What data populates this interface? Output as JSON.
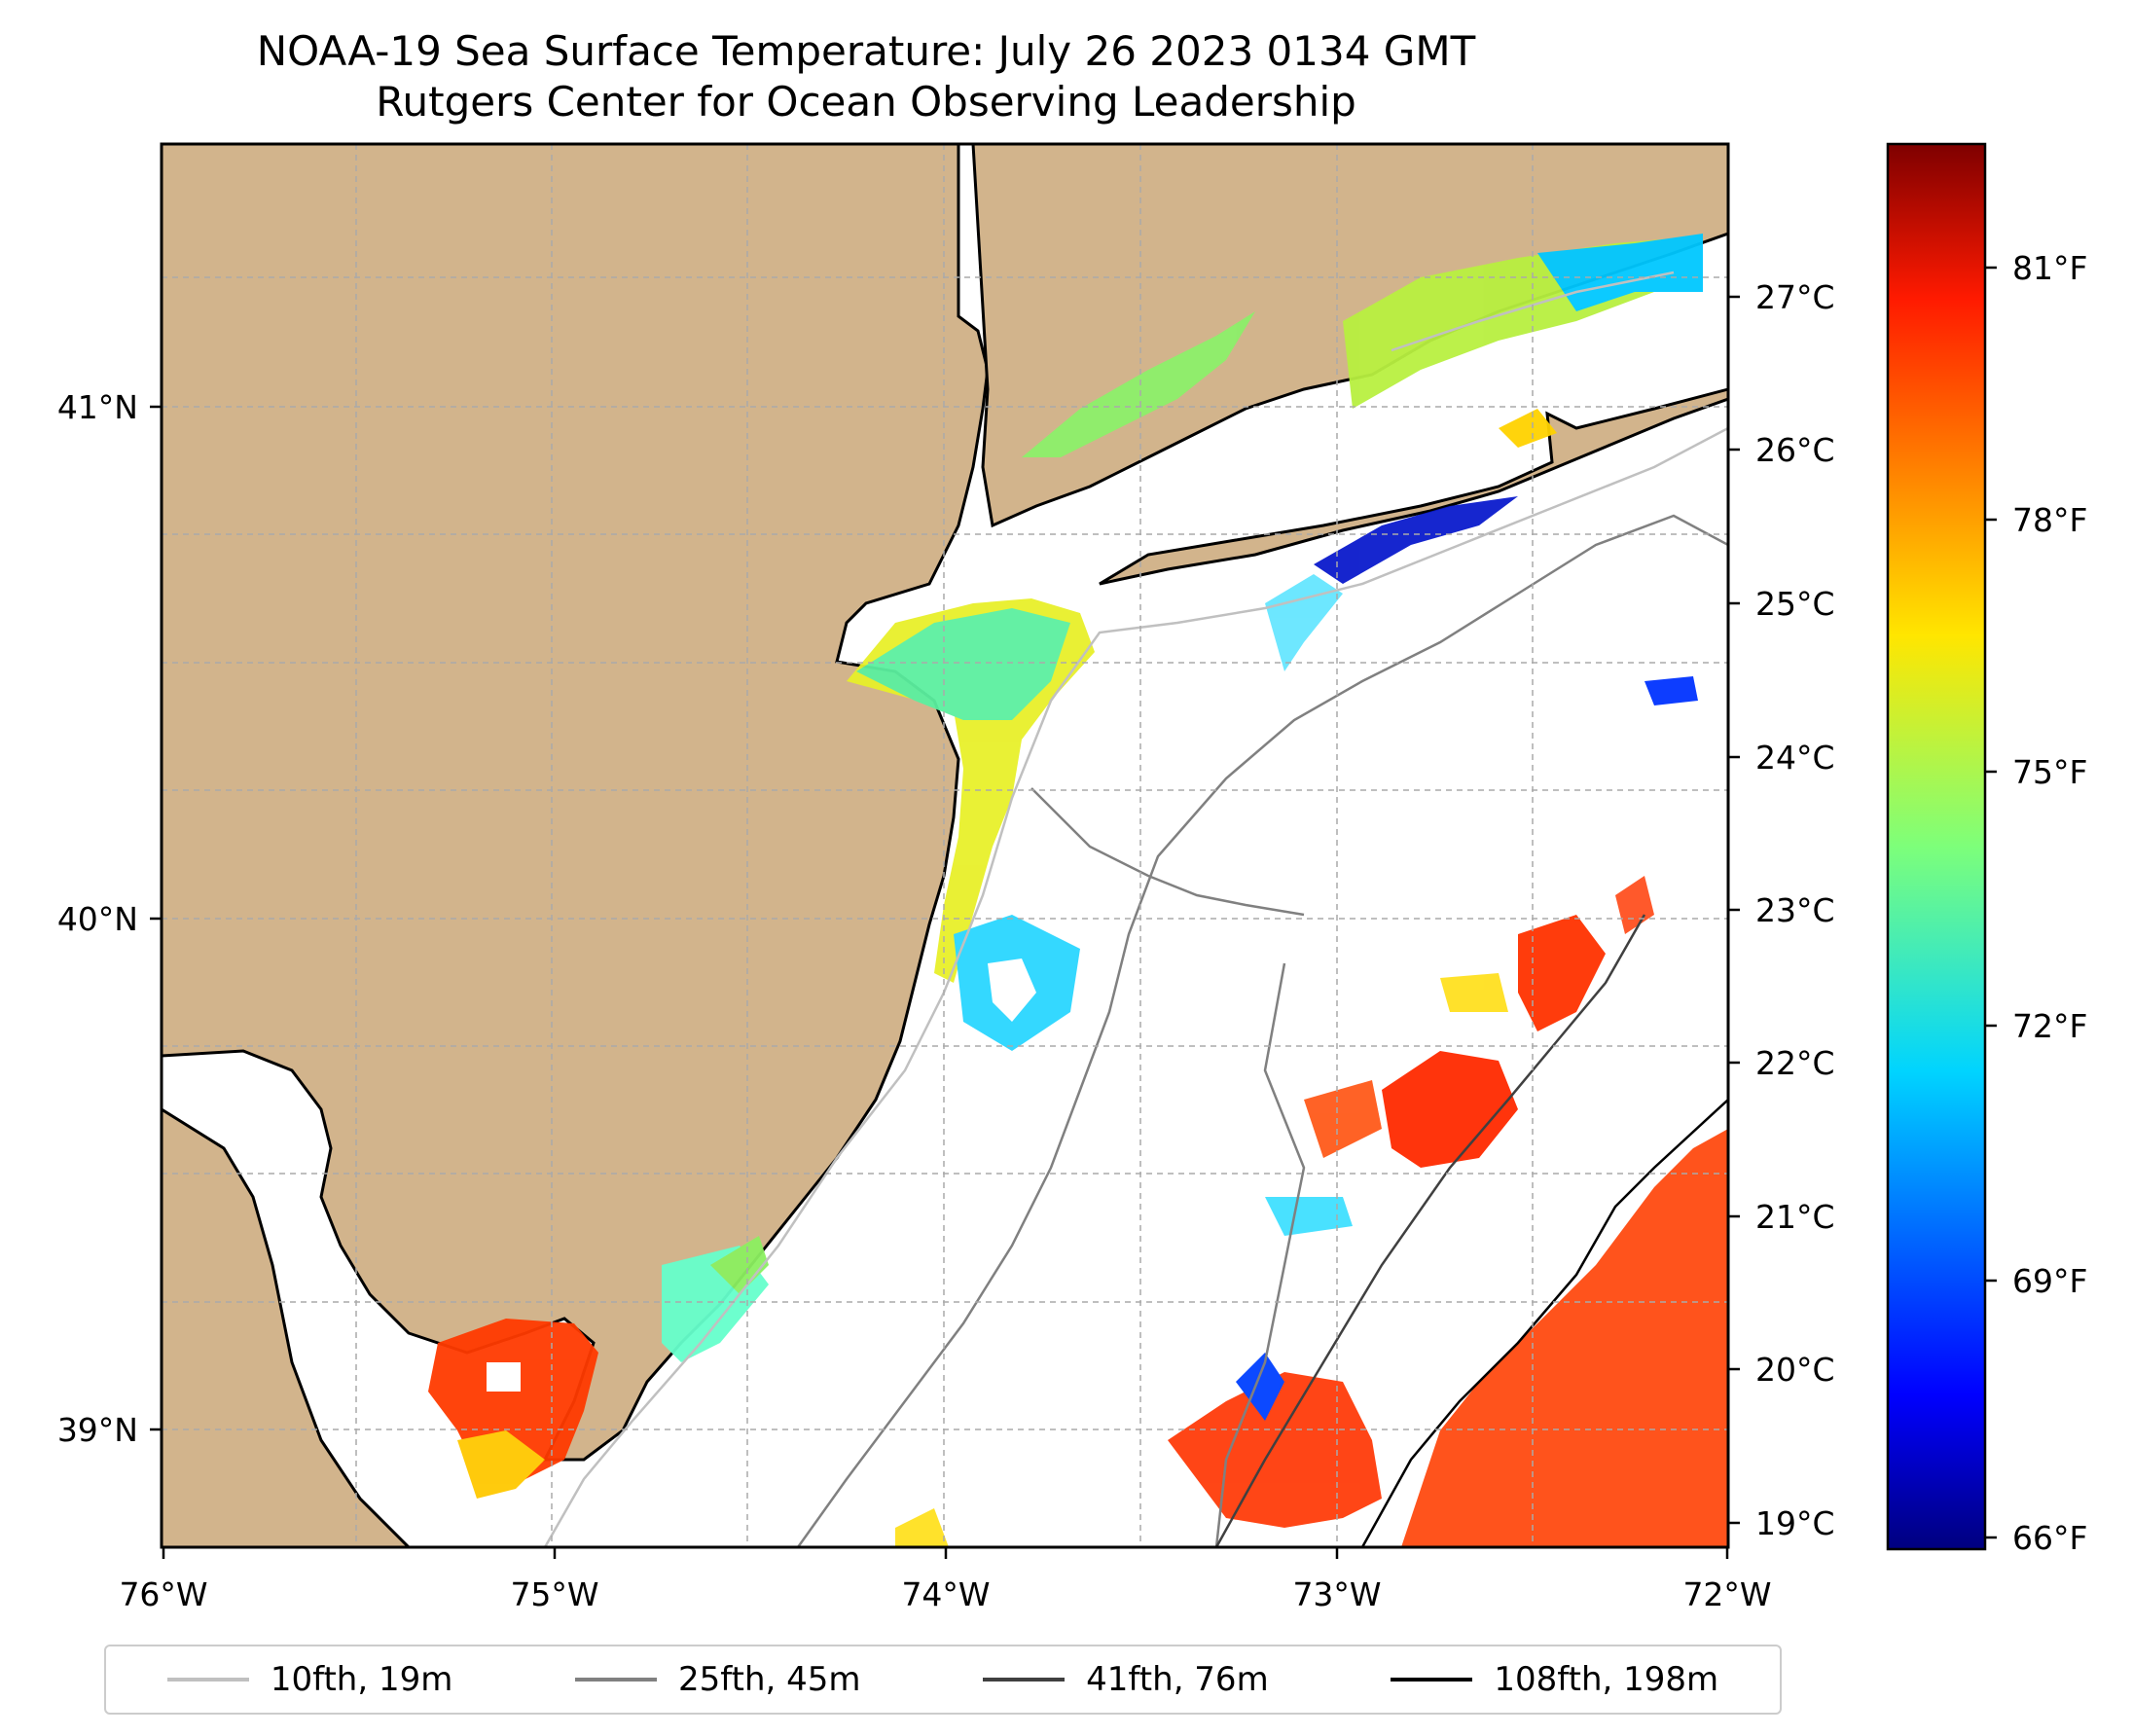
{
  "title": {
    "line1": "NOAA-19 Sea Surface Temperature: July 26 2023 0134 GMT",
    "line2": "Rutgers Center for Ocean Observing Leadership"
  },
  "map": {
    "lon_range": [
      -76,
      -72
    ],
    "lat_range": [
      38.75,
      41.5
    ],
    "lon_ticks": [
      "76°W",
      "75°W",
      "74°W",
      "73°W",
      "72°W"
    ],
    "lat_ticks": [
      "41°N",
      "40°N",
      "39°N"
    ],
    "land_color": "#d2b48c",
    "grid": true
  },
  "colorbar": {
    "colormap": "jet",
    "celsius_ticks": [
      "27°C",
      "26°C",
      "25°C",
      "24°C",
      "23°C",
      "22°C",
      "21°C",
      "20°C",
      "19°C"
    ],
    "fahrenheit_ticks": [
      "81°F",
      "78°F",
      "75°F",
      "72°F",
      "69°F",
      "66°F"
    ]
  },
  "legend": {
    "items": [
      {
        "label": "10fth, 19m",
        "color": "#c0c0c0"
      },
      {
        "label": "25fth, 45m",
        "color": "#808080"
      },
      {
        "label": "41fth, 76m",
        "color": "#404040"
      },
      {
        "label": "108fth, 198m",
        "color": "#000000"
      }
    ]
  }
}
